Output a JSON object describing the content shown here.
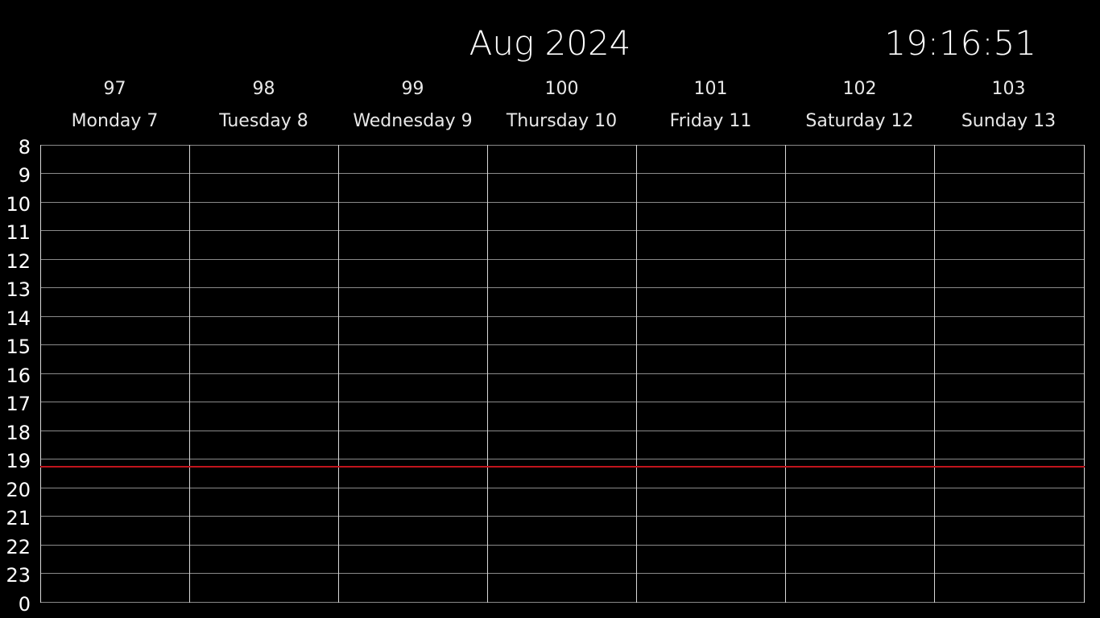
{
  "header": {
    "month_title": "Aug 2024",
    "clock": "19:16:51"
  },
  "days": [
    {
      "num": "97",
      "name": "Monday 7"
    },
    {
      "num": "98",
      "name": "Tuesday 8"
    },
    {
      "num": "99",
      "name": "Wednesday 9"
    },
    {
      "num": "100",
      "name": "Thursday 10"
    },
    {
      "num": "101",
      "name": "Friday 11"
    },
    {
      "num": "102",
      "name": "Saturday 12"
    },
    {
      "num": "103",
      "name": "Sunday 13"
    }
  ],
  "hours": [
    "8",
    "9",
    "10",
    "11",
    "12",
    "13",
    "14",
    "15",
    "16",
    "17",
    "18",
    "19",
    "20",
    "21",
    "22",
    "23",
    "0"
  ],
  "current_time_indicator": {
    "time": "19:16:51",
    "color": "#c0141c"
  },
  "colors": {
    "background": "#000000",
    "text": "#ffffff",
    "grid_horizontal": "#8a8a8a",
    "grid_vertical": "#d8d8d8"
  }
}
